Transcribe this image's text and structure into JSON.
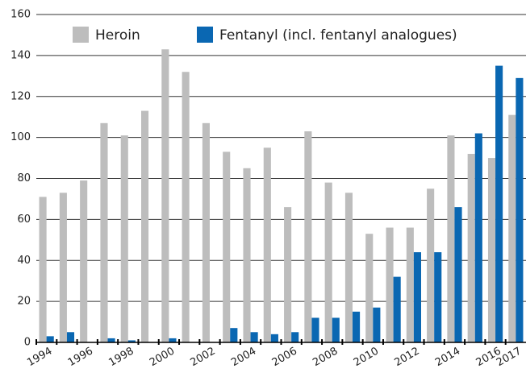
{
  "chart_data": {
    "type": "bar",
    "categories": [
      "1994",
      null,
      "1996",
      null,
      "1998",
      null,
      "2000",
      null,
      "2002",
      null,
      "2004",
      null,
      "2006",
      null,
      "2008",
      null,
      "2010",
      null,
      "2012",
      null,
      "2014",
      null,
      "2016",
      "2017"
    ],
    "series": [
      {
        "name": "Heroin",
        "color": "#bdbdbd",
        "values": [
          71,
          73,
          79,
          107,
          101,
          113,
          143,
          132,
          107,
          93,
          85,
          95,
          66,
          103,
          78,
          73,
          53,
          56,
          56,
          75,
          101,
          92,
          90,
          111
        ]
      },
      {
        "name": "Fentanyl (incl. fentanyl analogues)",
        "color": "#0a67b2",
        "values": [
          3,
          5,
          0,
          2,
          1,
          0,
          2,
          0,
          0,
          7,
          5,
          4,
          5,
          12,
          12,
          15,
          17,
          32,
          44,
          44,
          66,
          102,
          135,
          129
        ]
      }
    ],
    "ylim": [
      0,
      160
    ],
    "yticks": [
      0,
      20,
      40,
      60,
      80,
      100,
      120,
      140,
      160
    ],
    "grid": true
  }
}
